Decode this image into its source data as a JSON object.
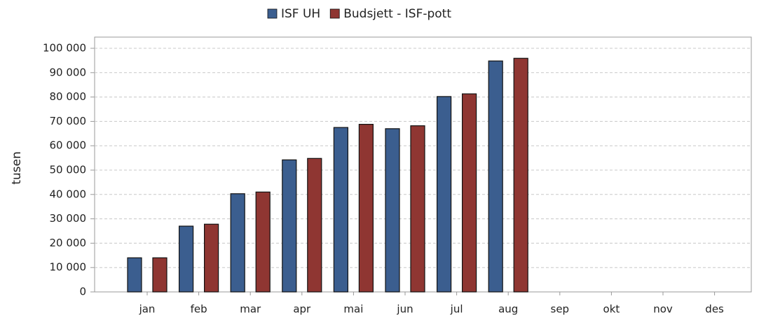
{
  "chart_data": {
    "type": "bar",
    "y_label": "tusen",
    "categories": [
      "jan",
      "feb",
      "mar",
      "apr",
      "mai",
      "jun",
      "jul",
      "aug",
      "sep",
      "okt",
      "nov",
      "des"
    ],
    "series": [
      {
        "name": "ISF UH",
        "color": "#3b5e8f",
        "values": [
          14000,
          27000,
          40300,
          54200,
          67500,
          67000,
          80200,
          94800,
          null,
          null,
          null,
          null
        ]
      },
      {
        "name": "Budsjett - ISF-pott",
        "color": "#8f3632",
        "values": [
          14000,
          27800,
          41000,
          54800,
          68800,
          68200,
          81300,
          95900,
          null,
          null,
          null,
          null
        ]
      }
    ],
    "ylim": [
      0,
      104600
    ],
    "yticks": [
      0,
      {
        "value": 10000,
        "label": "10 000"
      },
      {
        "value": 20000,
        "label": "20 000"
      },
      {
        "value": 30000,
        "label": "30 000"
      },
      {
        "value": 40000,
        "label": "40 000"
      },
      {
        "value": 50000,
        "label": "50 000"
      },
      {
        "value": 60000,
        "label": "60 000"
      },
      {
        "value": 70000,
        "label": "70 000"
      },
      {
        "value": 80000,
        "label": "80 000"
      },
      {
        "value": 90000,
        "label": "90 000"
      },
      {
        "value": 100000,
        "label": "100 000"
      }
    ],
    "grid": true
  }
}
